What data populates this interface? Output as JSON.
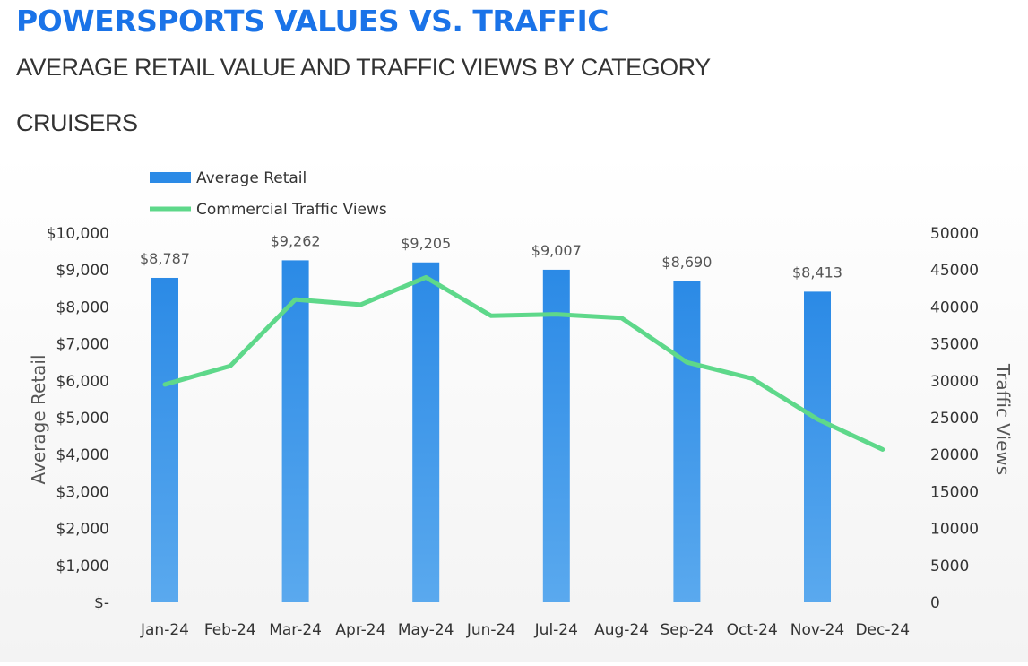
{
  "header": {
    "title": "POWERSPORTS VALUES VS. TRAFFIC",
    "subtitle": "AVERAGE RETAIL VALUE AND TRAFFIC VIEWS BY CATEGORY",
    "category": "CRUISERS"
  },
  "colors": {
    "title": "#1a73e8",
    "bar": "#2b8ae6",
    "line": "#5ed88a"
  },
  "chart_data": {
    "type": "bar",
    "categories": [
      "Jan-24",
      "Feb-24",
      "Mar-24",
      "Apr-24",
      "May-24",
      "Jun-24",
      "Jul-24",
      "Aug-24",
      "Sep-24",
      "Oct-24",
      "Nov-24",
      "Dec-24"
    ],
    "series": [
      {
        "name": "Average Retail",
        "type": "bar",
        "axis": "left",
        "values": [
          8787,
          null,
          9262,
          null,
          9205,
          null,
          9007,
          null,
          8690,
          null,
          8413,
          null
        ],
        "labels": [
          "$8,787",
          "",
          "$9,262",
          "",
          "$9,205",
          "",
          "$9,007",
          "",
          "$8,690",
          "",
          "$8,413",
          ""
        ]
      },
      {
        "name": "Commercial Traffic Views",
        "type": "line",
        "axis": "right",
        "values": [
          29500,
          32000,
          41000,
          40300,
          44000,
          38800,
          39000,
          38500,
          32500,
          30300,
          24800,
          20700
        ]
      }
    ],
    "legend": [
      "Average Retail",
      "Commercial Traffic Views"
    ],
    "legend_position": "top-left",
    "ylabel": "Average Retail",
    "y2label": "Traffic Views",
    "ylim": [
      0,
      10000
    ],
    "y2lim": [
      0,
      50000
    ],
    "yticks": [
      "$-",
      "$1,000",
      "$2,000",
      "$3,000",
      "$4,000",
      "$5,000",
      "$6,000",
      "$7,000",
      "$8,000",
      "$9,000",
      "$10,000"
    ],
    "y2ticks": [
      "0",
      "5000",
      "10000",
      "15000",
      "20000",
      "25000",
      "30000",
      "35000",
      "40000",
      "45000",
      "50000"
    ]
  }
}
